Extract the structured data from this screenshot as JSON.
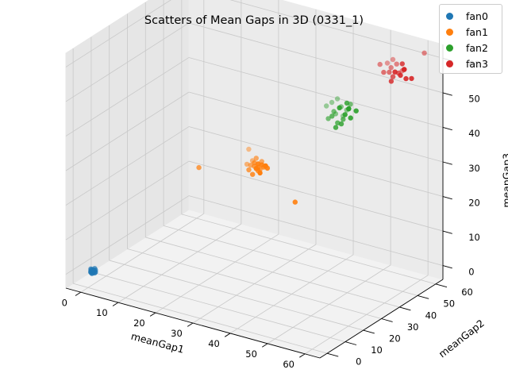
{
  "chart_data": {
    "type": "scatter",
    "title": "Scatters of Mean Gaps in 3D (0331_1)",
    "xlabel": "meanGap1",
    "ylabel": "meanGap2",
    "zlabel": "meanGap3",
    "xlim": [
      -4,
      64
    ],
    "ylim": [
      -4,
      64
    ],
    "zlim": [
      -4,
      64
    ],
    "xticks": [
      0,
      10,
      20,
      30,
      40,
      50,
      60
    ],
    "yticks": [
      0,
      10,
      20,
      30,
      40,
      50,
      60
    ],
    "zticks": [
      0,
      10,
      20,
      30,
      40,
      50,
      60
    ],
    "grid": true,
    "legend_position": "top-right",
    "series": [
      {
        "name": "fan0",
        "color": "#1f77b4",
        "points": [
          [
            0.5,
            0.5,
            0.5
          ],
          [
            1.0,
            0.8,
            0.8
          ],
          [
            0.8,
            1.3,
            0.4
          ],
          [
            1.4,
            0.6,
            1.1
          ],
          [
            0.3,
            0.9,
            1.2
          ],
          [
            1.2,
            1.2,
            0.2
          ],
          [
            0.6,
            0.3,
            1.0
          ],
          [
            1.5,
            1.0,
            0.6
          ],
          [
            0.9,
            0.2,
            0.3
          ],
          [
            0.2,
            1.5,
            0.8
          ],
          [
            1.1,
            0.4,
            1.4
          ],
          [
            0.7,
            1.1,
            0.0
          ],
          [
            1.3,
            1.4,
            1.0
          ],
          [
            0.4,
            0.7,
            0.3
          ],
          [
            1.0,
            1.6,
            1.3
          ]
        ]
      },
      {
        "name": "fan1",
        "color": "#ff7f0e",
        "points": [
          [
            30,
            30,
            30
          ],
          [
            31,
            30,
            29
          ],
          [
            29,
            31,
            31
          ],
          [
            32,
            31,
            30
          ],
          [
            30,
            29,
            28
          ],
          [
            31,
            32,
            31
          ],
          [
            29,
            30,
            30
          ],
          [
            32,
            29,
            29
          ],
          [
            30,
            31,
            32
          ],
          [
            31,
            30,
            31
          ],
          [
            33,
            31,
            30
          ],
          [
            29,
            29,
            29
          ],
          [
            30,
            32,
            30
          ],
          [
            32,
            30,
            31
          ],
          [
            31,
            31,
            29
          ],
          [
            28,
            30,
            30
          ],
          [
            33,
            30,
            31
          ],
          [
            30,
            30,
            31
          ],
          [
            31,
            29,
            30
          ],
          [
            32,
            32,
            30
          ],
          [
            30,
            31,
            29
          ],
          [
            31,
            30,
            30
          ],
          [
            20,
            20,
            30
          ],
          [
            28,
            31,
            34
          ],
          [
            38,
            36,
            20
          ]
        ]
      },
      {
        "name": "fan2",
        "color": "#2ca02c",
        "points": [
          [
            45,
            45,
            42
          ],
          [
            46,
            46,
            43
          ],
          [
            44,
            46,
            44
          ],
          [
            47,
            45,
            45
          ],
          [
            45,
            47,
            46
          ],
          [
            43,
            44,
            43
          ],
          [
            46,
            44,
            47
          ],
          [
            48,
            46,
            44
          ],
          [
            44,
            47,
            48
          ],
          [
            47,
            47,
            46
          ],
          [
            45,
            44,
            41
          ],
          [
            46,
            48,
            45
          ],
          [
            43,
            46,
            47
          ],
          [
            48,
            45,
            47
          ],
          [
            44,
            45,
            45
          ],
          [
            47,
            46,
            48
          ],
          [
            45,
            48,
            43
          ],
          [
            49,
            47,
            46
          ],
          [
            42,
            45,
            46
          ],
          [
            46,
            45,
            42
          ],
          [
            47,
            48,
            47
          ],
          [
            44,
            44,
            44
          ]
        ]
      },
      {
        "name": "fan3",
        "color": "#d62728",
        "points": [
          [
            55,
            55,
            55
          ],
          [
            56,
            56,
            56
          ],
          [
            54,
            56,
            57
          ],
          [
            57,
            55,
            56
          ],
          [
            55,
            57,
            58
          ],
          [
            53,
            54,
            56
          ],
          [
            56,
            54,
            57
          ],
          [
            58,
            56,
            55
          ],
          [
            54,
            57,
            59
          ],
          [
            57,
            57,
            57
          ],
          [
            55,
            54,
            54
          ],
          [
            56,
            58,
            56
          ],
          [
            53,
            56,
            58
          ],
          [
            58,
            55,
            58
          ],
          [
            54,
            55,
            56
          ],
          [
            57,
            56,
            59
          ],
          [
            60,
            62,
            61
          ],
          [
            52,
            54,
            58
          ],
          [
            59,
            57,
            55
          ]
        ]
      }
    ]
  }
}
